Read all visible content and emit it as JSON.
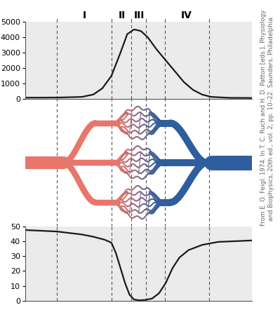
{
  "chart_data": [
    {
      "type": "line",
      "color": "#1a1a1a",
      "x": [
        0,
        15,
        25,
        30,
        34,
        38,
        42,
        45,
        48,
        51,
        54,
        58,
        62,
        66,
        70,
        74,
        78,
        82,
        90,
        100
      ],
      "values": [
        100,
        110,
        150,
        300,
        700,
        1500,
        3000,
        4200,
        4500,
        4400,
        4000,
        3200,
        2500,
        1800,
        1100,
        600,
        300,
        150,
        90,
        80
      ],
      "xlim": [
        0,
        100
      ],
      "ylim": [
        0,
        5000
      ],
      "yticks": [
        0,
        1000,
        2000,
        3000,
        4000,
        5000
      ],
      "tick_labels": "y"
    },
    {
      "type": "line",
      "color": "#1a1a1a",
      "x": [
        0,
        14,
        25,
        30,
        35,
        38,
        40,
        42,
        44,
        46,
        48,
        50,
        53,
        56,
        59,
        62,
        65,
        68,
        72,
        78,
        85,
        100
      ],
      "values": [
        47.5,
        46.5,
        44.5,
        43,
        41,
        39,
        32,
        22,
        12,
        4,
        0.8,
        0.3,
        0.5,
        1.5,
        5,
        12,
        22,
        29,
        34,
        37.5,
        39.5,
        40.5
      ],
      "xlim": [
        0,
        100
      ],
      "ylim": [
        0,
        50
      ],
      "yticks": [
        0,
        10,
        20,
        30,
        40,
        50
      ],
      "tick_labels": "y"
    }
  ],
  "regions": [
    {
      "label": "I",
      "start": 14,
      "end": 38.2
    },
    {
      "label": "II",
      "start": 38.2,
      "end": 46.9
    },
    {
      "label": "III",
      "start": 46.9,
      "end": 53.4
    },
    {
      "label": "IV",
      "start": 61.5,
      "end": 81
    }
  ],
  "credit": "From E. O. Feigl. 1974. In T. C. Ruch and H. D. Patton [eds.], Physiology\nand Biophysics, 20th ed., vol. 2, pp. 10–22. Saunders, Philadelphia."
}
